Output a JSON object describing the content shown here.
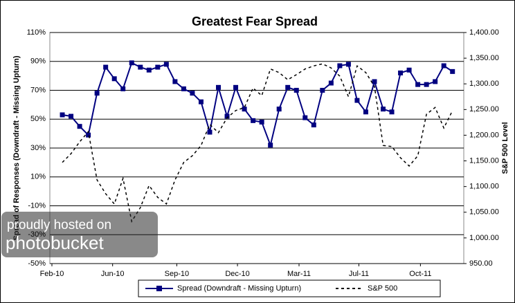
{
  "chart_data": {
    "type": "line",
    "title": "Greatest Fear Spread",
    "ylabel": "Spread of Responses (Downdraft - Missing Upturn)",
    "y2label": "S&P 500 Level",
    "annotations": [
      "proudly hosted on",
      "photobucket"
    ],
    "x": [
      0,
      1,
      2,
      3,
      4,
      5,
      6,
      7,
      8,
      9,
      10,
      11,
      12,
      13,
      14,
      15,
      16,
      17,
      18,
      19,
      20,
      21,
      22,
      23,
      24,
      25,
      26,
      27,
      28,
      29,
      30,
      31,
      32,
      33,
      34,
      35,
      36,
      37,
      38,
      39,
      40,
      41,
      42,
      43,
      44,
      45
    ],
    "xlim": [
      -1.44,
      46.3
    ],
    "xticks": [
      {
        "value": -1.2,
        "label": "Feb-10"
      },
      {
        "value": 5.8,
        "label": "Jun-10"
      },
      {
        "value": 13.2,
        "label": "Sep-10"
      },
      {
        "value": 20.2,
        "label": "Dec-10"
      },
      {
        "value": 27.3,
        "label": "Mar-11"
      },
      {
        "value": 34.2,
        "label": "Jul-11"
      },
      {
        "value": 41.3,
        "label": "Oct-11"
      }
    ],
    "ylim": [
      -50,
      110
    ],
    "yticks": [
      {
        "value": 110,
        "label": "110%"
      },
      {
        "value": 90,
        "label": "90%"
      },
      {
        "value": 70,
        "label": "70%"
      },
      {
        "value": 50,
        "label": "50%"
      },
      {
        "value": 30,
        "label": "30%"
      },
      {
        "value": 10,
        "label": "10%"
      },
      {
        "value": -10,
        "label": "-10%"
      },
      {
        "value": -30,
        "label": "-30%"
      },
      {
        "value": -50,
        "label": "-50%"
      }
    ],
    "y2lim": [
      950,
      1400
    ],
    "y2ticks": [
      {
        "value": 1400,
        "label": "1,400.00"
      },
      {
        "value": 1350,
        "label": "1,350.00"
      },
      {
        "value": 1300,
        "label": "1,300.00"
      },
      {
        "value": 1250,
        "label": "1,250.00"
      },
      {
        "value": 1200,
        "label": "1,200.00"
      },
      {
        "value": 1150,
        "label": "1,150.00"
      },
      {
        "value": 1100,
        "label": "1,100.00"
      },
      {
        "value": 1050,
        "label": "1,050.00"
      },
      {
        "value": 1000,
        "label": "1,000.00"
      },
      {
        "value": 950,
        "label": "950.00"
      }
    ],
    "grid": true,
    "legend": "bottom",
    "series": [
      {
        "name": "Spread (Downdraft - Missing Upturn)",
        "color": "#000080",
        "marker": "square",
        "values": [
          53,
          52,
          45,
          39,
          68,
          86,
          78,
          71,
          89,
          86,
          84,
          86,
          88,
          76,
          71,
          68,
          62,
          41,
          72,
          52,
          72,
          57,
          49,
          48,
          32,
          57,
          72,
          70,
          51,
          46,
          70,
          75,
          87,
          88,
          63,
          55,
          76,
          57,
          55,
          82,
          84,
          74,
          74,
          76,
          87,
          83
        ]
      },
      {
        "name": "S&P 500",
        "color": "#000000",
        "dashed": true,
        "axis": "y2",
        "values": [
          1147,
          1164,
          1187,
          1207,
          1113,
          1086,
          1066,
          1116,
          1032,
          1059,
          1102,
          1079,
          1066,
          1113,
          1147,
          1160,
          1180,
          1221,
          1205,
          1234,
          1248,
          1254,
          1292,
          1277,
          1329,
          1322,
          1308,
          1318,
          1329,
          1335,
          1339,
          1331,
          1315,
          1275,
          1335,
          1322,
          1295,
          1180,
          1178,
          1156,
          1140,
          1160,
          1241,
          1254,
          1214,
          1248
        ]
      }
    ]
  }
}
